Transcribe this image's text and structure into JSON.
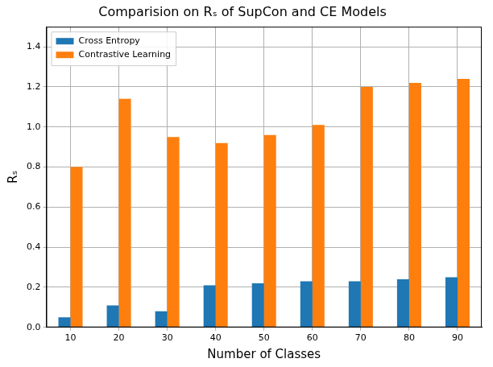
{
  "chart_data": {
    "type": "bar",
    "title": "Comparision on Rₛ of SupCon and CE Models",
    "x_label": "Number of Classes",
    "y_label": "Rₛ",
    "categories": [
      "10",
      "20",
      "30",
      "40",
      "50",
      "60",
      "70",
      "80",
      "90"
    ],
    "series": [
      {
        "name": "Cross Entropy",
        "color": "#1f77b4",
        "values": [
          0.05,
          0.11,
          0.08,
          0.21,
          0.22,
          0.23,
          0.23,
          0.24,
          0.25
        ]
      },
      {
        "name": "Contrastive Learning",
        "color": "#ff7f0e",
        "values": [
          0.8,
          1.14,
          0.95,
          0.92,
          0.96,
          1.01,
          1.2,
          1.22,
          1.24
        ]
      }
    ],
    "ylim": [
      0,
      1.5
    ],
    "yticks": [
      {
        "value": 0,
        "label": "0.0"
      },
      {
        "value": 0.2,
        "label": "0.2"
      },
      {
        "value": 0.4,
        "label": "0.4"
      },
      {
        "value": 0.6,
        "label": "0.6"
      },
      {
        "value": 0.8,
        "label": "0.8"
      },
      {
        "value": 1.0,
        "label": "1.0"
      },
      {
        "value": 1.2,
        "label": "1.2"
      },
      {
        "value": 1.4,
        "label": "1.4"
      }
    ],
    "grid": true,
    "legend": "upper left"
  }
}
